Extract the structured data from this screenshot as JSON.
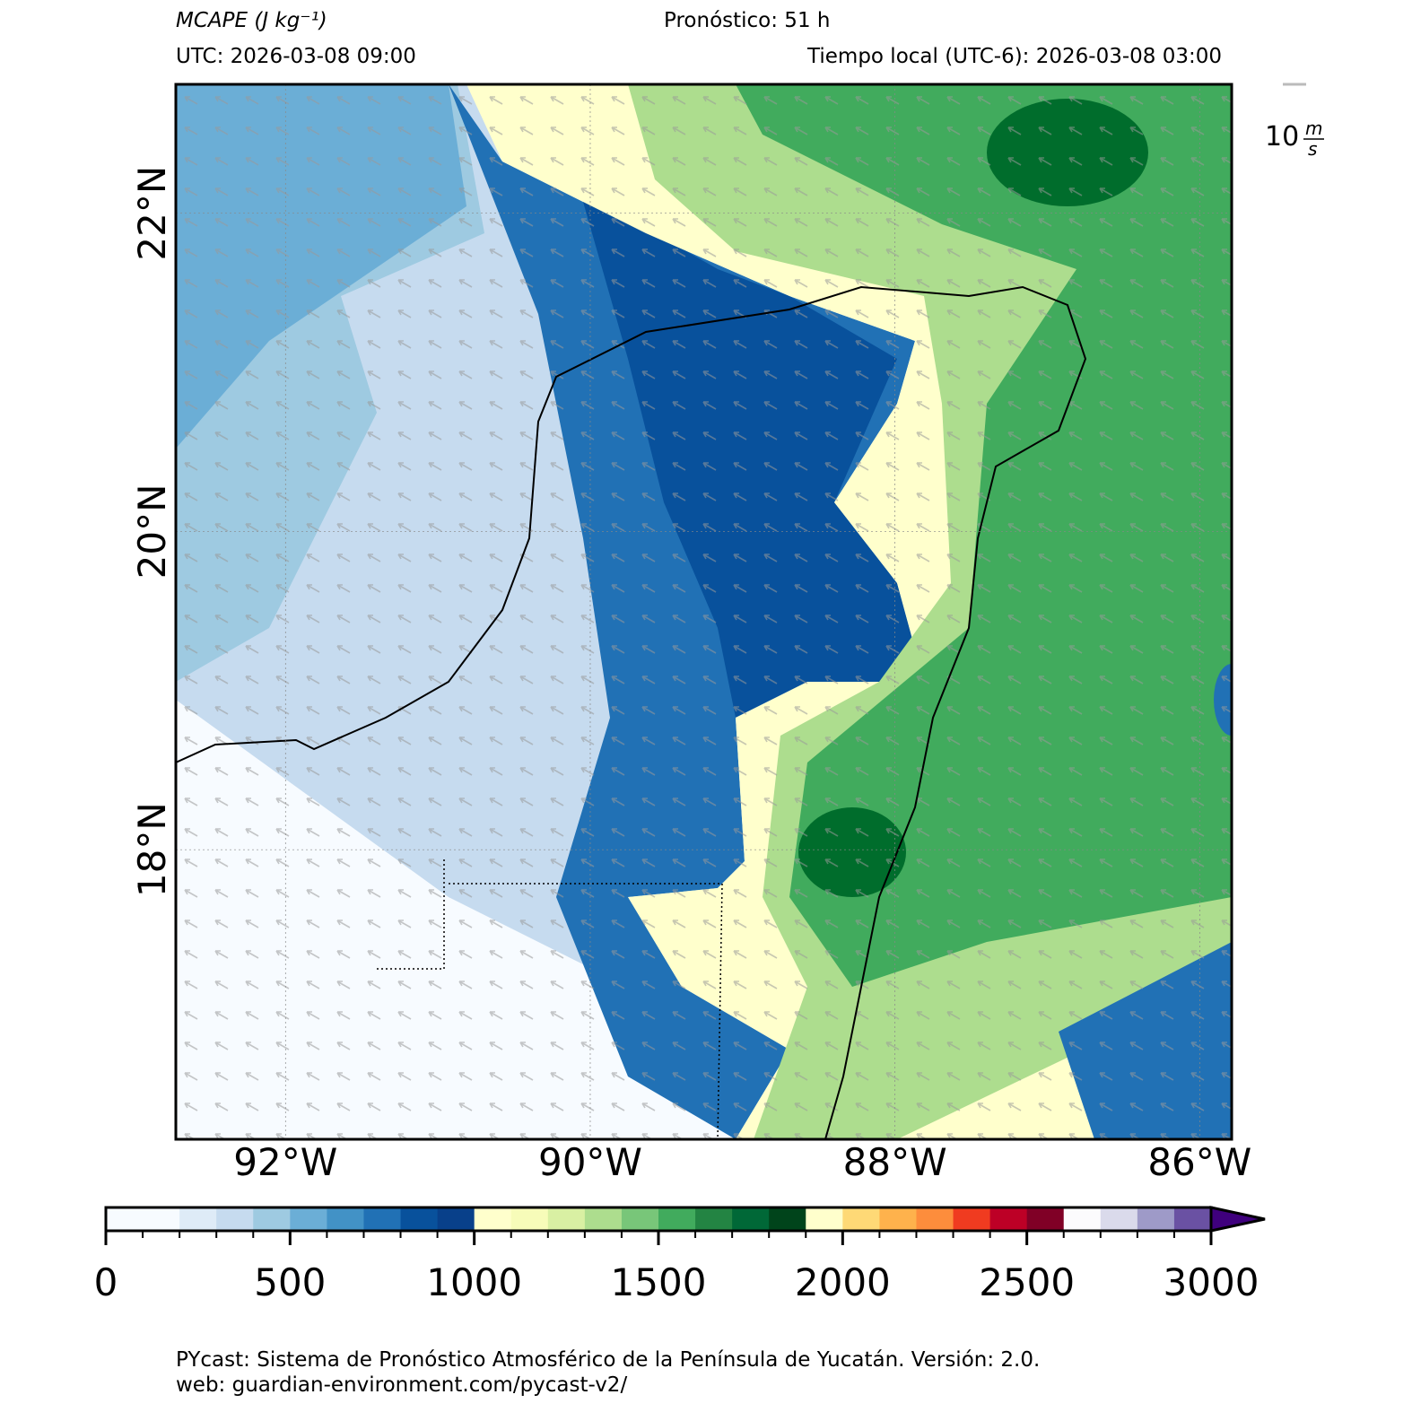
{
  "header": {
    "title": "MCAPE (J kg⁻¹)",
    "forecast": "Pronóstico: 51 h",
    "utc": "UTC:  2026-03-08 09:00",
    "local": "Tiempo local (UTC-6): 2026-03-08 03:00"
  },
  "map": {
    "xlim": [
      -92.72,
      -85.79
    ],
    "ylim": [
      16.18,
      22.81
    ],
    "lon_ticks": [
      {
        "value": -92,
        "label": "92°W"
      },
      {
        "value": -90,
        "label": "90°W"
      },
      {
        "value": -88,
        "label": "88°W"
      },
      {
        "value": -86,
        "label": "86°W"
      }
    ],
    "lat_ticks": [
      {
        "value": 22,
        "label": "22°N"
      },
      {
        "value": 20,
        "label": "20°N"
      },
      {
        "value": 18,
        "label": "18°N"
      }
    ],
    "quiver_key": {
      "value": 10,
      "unit_num": "m",
      "unit_den": "s"
    }
  },
  "colorbar": {
    "levels": [
      0,
      100,
      200,
      300,
      400,
      500,
      600,
      700,
      800,
      900,
      1000,
      1100,
      1200,
      1300,
      1400,
      1500,
      1600,
      1700,
      1800,
      1900,
      2000,
      2100,
      2200,
      2300,
      2400,
      2500,
      2600,
      2700,
      2800,
      2900,
      3000
    ],
    "colors": [
      "#f7fbff",
      "#f7fbff",
      "#deebf7",
      "#c6dbef",
      "#9ecae1",
      "#6baed6",
      "#4292c6",
      "#2171b5",
      "#08519c",
      "#08408a",
      "#ffffcc",
      "#f7fcb9",
      "#d9f0a3",
      "#addd8e",
      "#78c679",
      "#41ab5d",
      "#238443",
      "#006837",
      "#00441b",
      "#ffffcc",
      "#fed976",
      "#feb24c",
      "#fd8d3c",
      "#f03b20",
      "#bd0026",
      "#800026",
      "#fcfbfd",
      "#dadaeb",
      "#9e9ac8",
      "#6a51a3"
    ],
    "extend_color": "#3f007d",
    "ticks": [
      0,
      500,
      1000,
      1500,
      2000,
      2500,
      3000
    ]
  },
  "footer": {
    "line1": "PYcast: Sistema de Pronóstico Atmosférico de la Península de Yucatán. Versión: 2.0.",
    "line2": "web: guardian-environment.com/pycast-v2/"
  }
}
